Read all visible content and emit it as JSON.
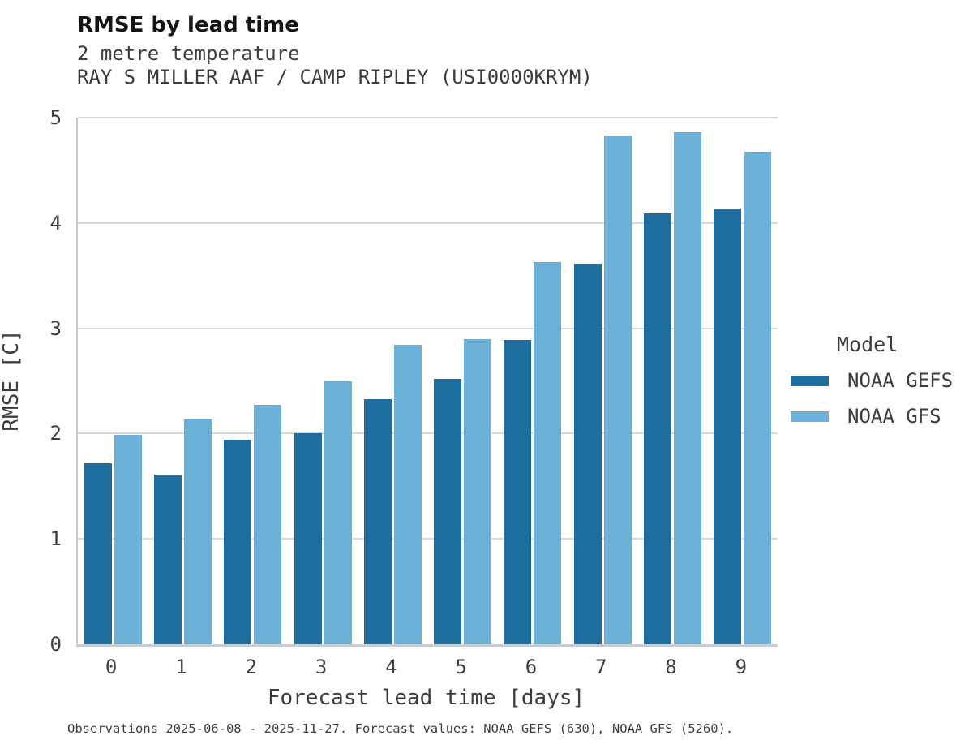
{
  "header": {
    "title": "RMSE by lead time",
    "subtitle1": "2 metre temperature",
    "subtitle2": "RAY S MILLER AAF / CAMP RIPLEY (USI0000KRYM)"
  },
  "chart_data": {
    "type": "bar",
    "title": "RMSE by lead time",
    "subtitle": "2 metre temperature — RAY S MILLER AAF / CAMP RIPLEY (USI0000KRYM)",
    "categories": [
      "0",
      "1",
      "2",
      "3",
      "4",
      "5",
      "6",
      "7",
      "8",
      "9"
    ],
    "series": [
      {
        "name": "NOAA GEFS",
        "color": "#1e6e9d",
        "values": [
          1.72,
          1.61,
          1.94,
          2.0,
          2.33,
          2.52,
          2.89,
          3.61,
          4.09,
          4.14
        ]
      },
      {
        "name": "NOAA GFS",
        "color": "#6db0d7",
        "values": [
          1.99,
          2.14,
          2.27,
          2.5,
          2.84,
          2.9,
          3.63,
          4.83,
          4.86,
          4.68
        ]
      }
    ],
    "xlabel": "Forecast lead time [days]",
    "ylabel": "RMSE [C]",
    "ylim": [
      0,
      5
    ],
    "yticks": [
      0,
      1,
      2,
      3,
      4,
      5
    ],
    "grid": "horizontal",
    "legend_title": "Model",
    "legend_position": "right of plot"
  },
  "legend": {
    "title": "Model",
    "entries": [
      {
        "label": "NOAA GEFS",
        "color": "#1e6e9d"
      },
      {
        "label": "NOAA GFS",
        "color": "#6db0d7"
      }
    ]
  },
  "footer": {
    "note": "Observations 2025-06-08 - 2025-11-27. Forecast values: NOAA GEFS (630), NOAA GFS (5260)."
  },
  "colors": {
    "series_dark": "#1e6e9d",
    "series_light": "#6db0d7",
    "gridline": "#d8d8d8",
    "axis_line": "#c9cdd1",
    "title_text": "#141414",
    "label_text": "#3d3d3d",
    "background": "#ffffff"
  }
}
